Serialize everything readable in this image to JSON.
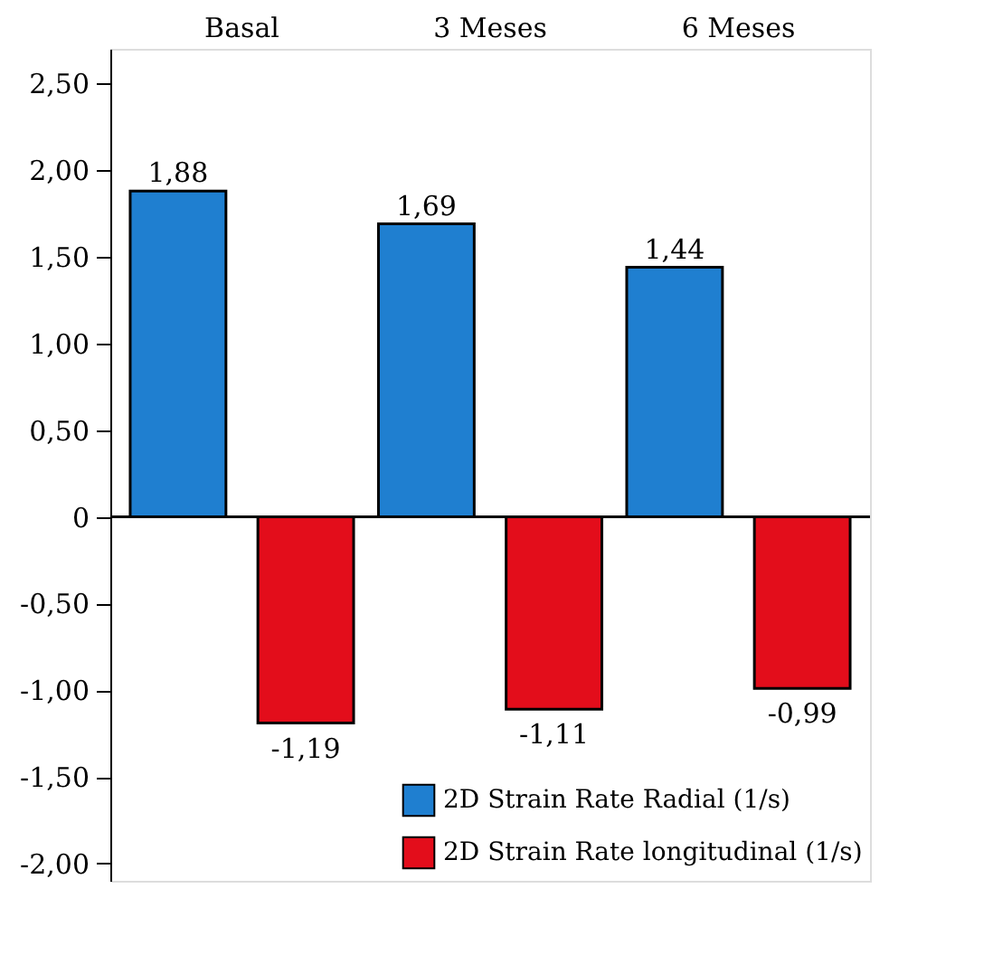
{
  "chart_data": {
    "type": "bar",
    "categories": [
      "Basal",
      "3 Meses",
      "6 Meses"
    ],
    "series": [
      {
        "name": "2D Strain Rate Radial (1/s)",
        "color": "#1f7fd0",
        "values": [
          1.88,
          1.69,
          1.44
        ],
        "value_labels": [
          "1,88",
          "1,69",
          "1,44"
        ]
      },
      {
        "name": "2D Strain Rate longitudinal (1/s)",
        "color": "#e30d1b",
        "values": [
          -1.19,
          -1.11,
          -0.99
        ],
        "value_labels": [
          "-1,19",
          "-1,11",
          "-0,99"
        ]
      }
    ],
    "ylim": [
      -2.1,
      2.7
    ],
    "yticks": [
      {
        "value": -2,
        "label": "-2,00"
      },
      {
        "value": -1.5,
        "label": "-1,50"
      },
      {
        "value": -1,
        "label": "-1,00"
      },
      {
        "value": -0.5,
        "label": "-0,50"
      },
      {
        "value": 0,
        "label": "0"
      },
      {
        "value": 0.5,
        "label": "0,50"
      },
      {
        "value": 1,
        "label": "1,00"
      },
      {
        "value": 1.5,
        "label": "1,50"
      },
      {
        "value": 2,
        "label": "2,00"
      },
      {
        "value": 2.5,
        "label": "2,50"
      }
    ],
    "ref_lines": [
      {
        "axis": "y",
        "value": 0,
        "color": "#000000"
      }
    ],
    "grid": false,
    "legend": "bottom right"
  }
}
